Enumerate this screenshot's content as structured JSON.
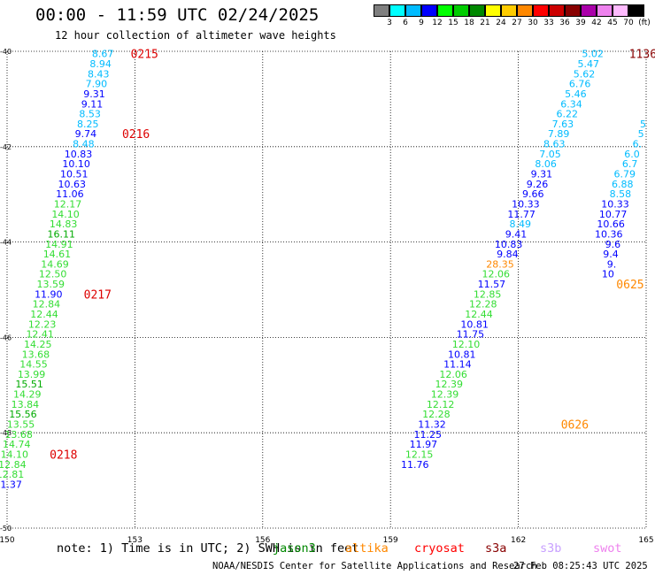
{
  "header": {
    "title": "00:00 - 11:59 UTC 02/24/2025",
    "subtitle": "12 hour collection of altimeter wave heights"
  },
  "colorbar": {
    "labels": [
      "3",
      "6",
      "9",
      "12",
      "15",
      "18",
      "21",
      "24",
      "27",
      "30",
      "33",
      "36",
      "39",
      "42",
      "45",
      "70",
      "(ft)"
    ],
    "colors": [
      "#7f7f7f",
      "#00ffff",
      "#00bbff",
      "#0000ff",
      "#00ff00",
      "#00cc00",
      "#008800",
      "#ffff00",
      "#ffcc00",
      "#ff8800",
      "#ff0000",
      "#cc0000",
      "#880000",
      "#aa00aa",
      "#ee82ee",
      "#ffbbff",
      "#000000"
    ]
  },
  "notes": {
    "prefix": "note: 1) Time is in UTC; 2) SWH is in feet",
    "sats": [
      {
        "name": "jason3",
        "color": "#008800"
      },
      {
        "name": "altika",
        "color": "#ff8800"
      },
      {
        "name": "cryosat",
        "color": "#ff0000"
      },
      {
        "name": "s3a",
        "color": "#880000"
      },
      {
        "name": "s3b",
        "color": "#c8a0ff"
      },
      {
        "name": "swot",
        "color": "#ee82ee"
      }
    ]
  },
  "footer": {
    "left": "NOAA/NESDIS Center for Satellite Applications and Research",
    "right": "27 Feb 08:25:43 UTC 2025"
  },
  "chart_data": {
    "type": "scatter",
    "title": "00:00 - 11:59 UTC 02/24/2025",
    "subtitle": "12 hour collection of altimeter wave heights",
    "xlim": [
      150,
      165
    ],
    "ylim": [
      -50,
      -40
    ],
    "x_ticks": [
      "150",
      "153",
      "156",
      "159",
      "162",
      "165"
    ],
    "y_ticks": [
      "-40",
      "-42",
      "-44",
      "-46",
      "-48",
      "-50"
    ],
    "track1": [
      {
        "lon": 152.5,
        "lat": -40.05,
        "v": "8.67"
      },
      {
        "lon": 152.45,
        "lat": -40.26,
        "v": "8.94"
      },
      {
        "lon": 152.4,
        "lat": -40.47,
        "v": "8.43"
      },
      {
        "lon": 152.35,
        "lat": -40.68,
        "v": "7.90"
      },
      {
        "lon": 152.3,
        "lat": -40.89,
        "v": "9.31"
      },
      {
        "lon": 152.25,
        "lat": -41.1,
        "v": "9.11"
      },
      {
        "lon": 152.2,
        "lat": -41.31,
        "v": "8.53"
      },
      {
        "lon": 152.15,
        "lat": -41.52,
        "v": "8.25"
      },
      {
        "lon": 152.1,
        "lat": -41.73,
        "v": "9.74"
      },
      {
        "lon": 152.05,
        "lat": -41.94,
        "v": "8.48"
      },
      {
        "lon": 152.0,
        "lat": -42.15,
        "v": "10.83"
      },
      {
        "lon": 151.95,
        "lat": -42.36,
        "v": "10.10"
      },
      {
        "lon": 151.9,
        "lat": -42.57,
        "v": "10.51"
      },
      {
        "lon": 151.85,
        "lat": -42.78,
        "v": "10.63"
      },
      {
        "lon": 151.8,
        "lat": -42.99,
        "v": "11.06"
      },
      {
        "lon": 151.75,
        "lat": -43.2,
        "v": "12.17"
      },
      {
        "lon": 151.7,
        "lat": -43.41,
        "v": "14.10"
      },
      {
        "lon": 151.65,
        "lat": -43.62,
        "v": "14.83"
      },
      {
        "lon": 151.6,
        "lat": -43.83,
        "v": "16.11"
      },
      {
        "lon": 151.55,
        "lat": -44.04,
        "v": "14.91"
      },
      {
        "lon": 151.5,
        "lat": -44.25,
        "v": "14.61"
      },
      {
        "lon": 151.45,
        "lat": -44.46,
        "v": "14.69"
      },
      {
        "lon": 151.4,
        "lat": -44.67,
        "v": "12.50"
      },
      {
        "lon": 151.35,
        "lat": -44.88,
        "v": "13.59"
      },
      {
        "lon": 151.3,
        "lat": -45.09,
        "v": "11.90"
      },
      {
        "lon": 151.25,
        "lat": -45.3,
        "v": "12.84"
      },
      {
        "lon": 151.2,
        "lat": -45.51,
        "v": "12.44"
      },
      {
        "lon": 151.15,
        "lat": -45.72,
        "v": "12.23"
      },
      {
        "lon": 151.1,
        "lat": -45.93,
        "v": "12.41"
      },
      {
        "lon": 151.05,
        "lat": -46.14,
        "v": "14.25"
      },
      {
        "lon": 151.0,
        "lat": -46.35,
        "v": "13.68"
      },
      {
        "lon": 150.95,
        "lat": -46.56,
        "v": "14.55"
      },
      {
        "lon": 150.9,
        "lat": -46.77,
        "v": "13.99"
      },
      {
        "lon": 150.85,
        "lat": -46.98,
        "v": "15.51"
      },
      {
        "lon": 150.8,
        "lat": -47.19,
        "v": "14.29"
      },
      {
        "lon": 150.75,
        "lat": -47.4,
        "v": "13.84"
      },
      {
        "lon": 150.7,
        "lat": -47.61,
        "v": "15.56"
      },
      {
        "lon": 150.65,
        "lat": -47.82,
        "v": "13.55"
      },
      {
        "lon": 150.6,
        "lat": -48.03,
        "v": "13.68"
      },
      {
        "lon": 150.55,
        "lat": -48.24,
        "v": "14.74"
      },
      {
        "lon": 150.5,
        "lat": -48.45,
        "v": "14.10"
      },
      {
        "lon": 150.45,
        "lat": -48.66,
        "v": "12.84"
      },
      {
        "lon": 150.4,
        "lat": -48.87,
        "v": "12.81"
      },
      {
        "lon": 150.35,
        "lat": -49.08,
        "v": "11.37"
      }
    ],
    "track1_times": [
      {
        "lon": 152.9,
        "lat": -40.05,
        "t": "0215",
        "color": "#dd0000"
      },
      {
        "lon": 152.7,
        "lat": -41.73,
        "t": "0216",
        "color": "#dd0000"
      },
      {
        "lon": 151.8,
        "lat": -45.09,
        "t": "0217",
        "color": "#dd0000"
      },
      {
        "lon": 151.0,
        "lat": -48.45,
        "t": "0218",
        "color": "#dd0000"
      }
    ],
    "track2": [
      {
        "lon": 164.0,
        "lat": -40.05,
        "v": "5.02"
      },
      {
        "lon": 163.9,
        "lat": -40.26,
        "v": "5.47"
      },
      {
        "lon": 163.8,
        "lat": -40.47,
        "v": "5.62"
      },
      {
        "lon": 163.7,
        "lat": -40.68,
        "v": "6.76"
      },
      {
        "lon": 163.6,
        "lat": -40.89,
        "v": "5.46"
      },
      {
        "lon": 163.5,
        "lat": -41.1,
        "v": "6.34"
      },
      {
        "lon": 163.4,
        "lat": -41.31,
        "v": "6.22"
      },
      {
        "lon": 163.3,
        "lat": -41.52,
        "v": "7.63"
      },
      {
        "lon": 163.2,
        "lat": -41.73,
        "v": "7.89"
      },
      {
        "lon": 163.1,
        "lat": -41.94,
        "v": "8.63"
      },
      {
        "lon": 163.0,
        "lat": -42.15,
        "v": "7.05"
      },
      {
        "lon": 162.9,
        "lat": -42.36,
        "v": "8.06"
      },
      {
        "lon": 162.8,
        "lat": -42.57,
        "v": "9.31"
      },
      {
        "lon": 162.7,
        "lat": -42.78,
        "v": "9.26"
      },
      {
        "lon": 162.6,
        "lat": -42.99,
        "v": "9.66"
      },
      {
        "lon": 162.5,
        "lat": -43.2,
        "v": "10.33"
      },
      {
        "lon": 162.4,
        "lat": -43.41,
        "v": "11.77"
      },
      {
        "lon": 162.3,
        "lat": -43.62,
        "v": "8.49"
      },
      {
        "lon": 162.2,
        "lat": -43.83,
        "v": "9.41"
      },
      {
        "lon": 162.1,
        "lat": -44.04,
        "v": "10.83"
      },
      {
        "lon": 162.0,
        "lat": -44.25,
        "v": "9.84"
      },
      {
        "lon": 161.9,
        "lat": -44.46,
        "v": "28.35"
      },
      {
        "lon": 161.8,
        "lat": -44.67,
        "v": "12.06"
      },
      {
        "lon": 161.7,
        "lat": -44.88,
        "v": "11.57"
      },
      {
        "lon": 161.6,
        "lat": -45.09,
        "v": "12.85"
      },
      {
        "lon": 161.5,
        "lat": -45.3,
        "v": "12.28"
      },
      {
        "lon": 161.4,
        "lat": -45.51,
        "v": "12.44"
      },
      {
        "lon": 161.3,
        "lat": -45.72,
        "v": "10.81"
      },
      {
        "lon": 161.2,
        "lat": -45.93,
        "v": "11.75"
      },
      {
        "lon": 161.1,
        "lat": -46.14,
        "v": "12.10"
      },
      {
        "lon": 161.0,
        "lat": -46.35,
        "v": "10.81"
      },
      {
        "lon": 160.9,
        "lat": -46.56,
        "v": "11.14"
      },
      {
        "lon": 160.8,
        "lat": -46.77,
        "v": "12.06"
      },
      {
        "lon": 160.7,
        "lat": -46.98,
        "v": "12.39"
      },
      {
        "lon": 160.6,
        "lat": -47.19,
        "v": "12.39"
      },
      {
        "lon": 160.5,
        "lat": -47.4,
        "v": "12.12"
      },
      {
        "lon": 160.4,
        "lat": -47.61,
        "v": "12.28"
      },
      {
        "lon": 160.3,
        "lat": -47.82,
        "v": "11.32"
      },
      {
        "lon": 160.2,
        "lat": -48.03,
        "v": "11.25"
      },
      {
        "lon": 160.1,
        "lat": -48.24,
        "v": "11.97"
      },
      {
        "lon": 160.0,
        "lat": -48.45,
        "v": "12.15"
      },
      {
        "lon": 159.9,
        "lat": -48.66,
        "v": "11.76"
      }
    ],
    "track2_times": [
      {
        "lon": 164.6,
        "lat": -40.05,
        "t": "1136",
        "color": "#880000"
      },
      {
        "lon": 164.3,
        "lat": -44.88,
        "t": "0625",
        "color": "#ff8800"
      },
      {
        "lon": 163.0,
        "lat": -47.82,
        "t": "0626",
        "color": "#ff8800"
      }
    ],
    "track3": [
      {
        "lon": 165.0,
        "lat": -41.52,
        "v": "5"
      },
      {
        "lon": 164.95,
        "lat": -41.73,
        "v": "5"
      },
      {
        "lon": 164.9,
        "lat": -41.94,
        "v": "6."
      },
      {
        "lon": 164.85,
        "lat": -42.15,
        "v": "6.0"
      },
      {
        "lon": 164.8,
        "lat": -42.36,
        "v": "6.7"
      },
      {
        "lon": 164.75,
        "lat": -42.57,
        "v": "6.79"
      },
      {
        "lon": 164.7,
        "lat": -42.78,
        "v": "6.88"
      },
      {
        "lon": 164.65,
        "lat": -42.99,
        "v": "8.58"
      },
      {
        "lon": 164.6,
        "lat": -43.2,
        "v": "10.33"
      },
      {
        "lon": 164.55,
        "lat": -43.41,
        "v": "10.77"
      },
      {
        "lon": 164.5,
        "lat": -43.62,
        "v": "10.66"
      },
      {
        "lon": 164.45,
        "lat": -43.83,
        "v": "10.36"
      },
      {
        "lon": 164.4,
        "lat": -44.04,
        "v": "9.6"
      },
      {
        "lon": 164.35,
        "lat": -44.25,
        "v": "9.4"
      },
      {
        "lon": 164.3,
        "lat": -44.46,
        "v": "9."
      },
      {
        "lon": 164.25,
        "lat": -44.67,
        "v": "10"
      }
    ]
  }
}
